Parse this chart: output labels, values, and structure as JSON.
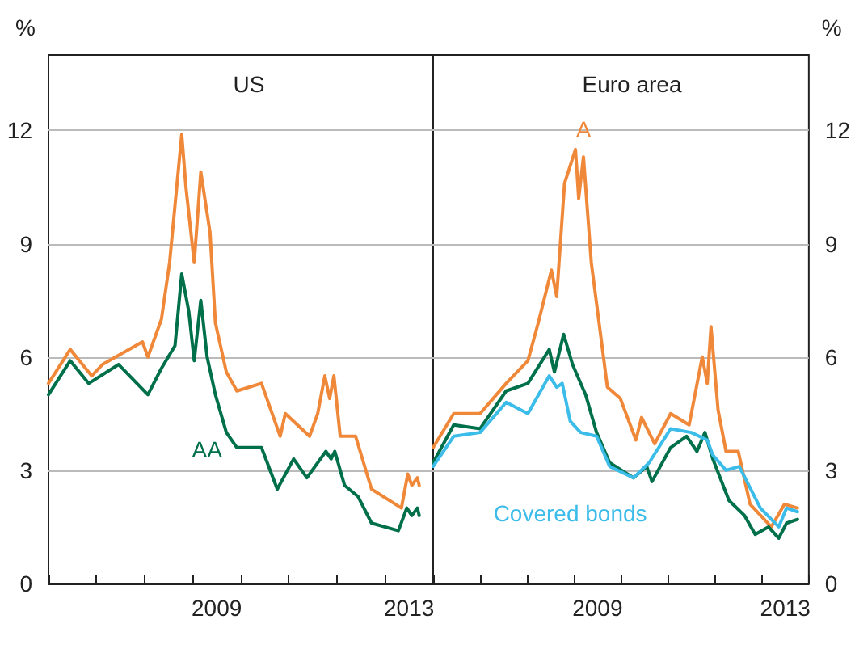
{
  "chart_data": [
    {
      "type": "line",
      "title": "US",
      "ylabel": "%",
      "marker": "none",
      "grid": "y",
      "xlim": [
        "2006-01-01",
        "2014-01-01"
      ],
      "xticks": [
        {
          "value": "2006-01-01",
          "label": null
        },
        {
          "value": "2007-01-01",
          "label": null
        },
        {
          "value": "2008-01-01",
          "label": null
        },
        {
          "value": "2009-01-01",
          "label": null
        },
        {
          "value": "2010-01-01",
          "label": null
        },
        {
          "value": "2011-01-01",
          "label": null
        },
        {
          "value": "2012-01-01",
          "label": null
        },
        {
          "value": "2013-01-01",
          "label": null
        },
        {
          "value": "2014-01-01",
          "label": null
        },
        {
          "value": "2009-07-02",
          "label": "2009"
        },
        {
          "value": "2013-07-02",
          "label": "2013"
        }
      ],
      "ylim": [
        0,
        14
      ],
      "yticks": [
        0,
        3,
        6,
        9,
        12
      ],
      "series": [
        {
          "color": "#f0883a",
          "x": [
            "2006-01-01",
            "2006-06-15",
            "2006-11-25",
            "2007-02-15",
            "2007-05-26",
            "2007-12-16",
            "2008-01-26",
            "2008-05-08",
            "2008-07-09",
            "2008-10-09",
            "2008-11-10",
            "2009-01-12",
            "2009-03-03",
            "2009-05-12",
            "2009-06-22",
            "2009-09-13",
            "2009-12-02",
            "2010-06-07",
            "2010-10-27",
            "2010-12-05",
            "2011-06-07",
            "2011-08-08",
            "2011-10-01",
            "2011-11-07",
            "2011-12-09",
            "2012-01-26",
            "2012-05-22",
            "2012-09-20",
            "2013-05-05",
            "2013-06-22",
            "2013-07-23",
            "2013-09-03",
            "2013-09-17"
          ],
          "values": [
            5.3,
            6.2,
            5.5,
            5.8,
            6.0,
            6.4,
            6.0,
            7.0,
            8.5,
            11.9,
            10.5,
            8.5,
            10.9,
            9.3,
            6.9,
            5.6,
            5.1,
            5.3,
            3.9,
            4.5,
            3.9,
            4.5,
            5.5,
            4.9,
            5.5,
            3.9,
            3.9,
            2.5,
            2.0,
            2.9,
            2.6,
            2.8,
            2.6
          ]
        },
        {
          "name": "AA",
          "color": "#00704a",
          "x": [
            "2006-01-01",
            "2006-06-15",
            "2006-11-03",
            "2007-06-18",
            "2008-01-26",
            "2008-05-08",
            "2008-08-19",
            "2008-10-09",
            "2008-12-02",
            "2009-01-12",
            "2009-03-03",
            "2009-04-20",
            "2009-06-22",
            "2009-09-13",
            "2009-12-02",
            "2010-06-07",
            "2010-10-05",
            "2011-02-06",
            "2011-05-18",
            "2011-10-09",
            "2011-11-18",
            "2011-12-16",
            "2012-02-28",
            "2012-06-10",
            "2012-09-20",
            "2013-04-12",
            "2013-06-15",
            "2013-07-23",
            "2013-09-03",
            "2013-09-17"
          ],
          "values": [
            5.0,
            5.9,
            5.3,
            5.8,
            5.0,
            5.7,
            6.3,
            8.2,
            7.2,
            5.9,
            7.5,
            6.0,
            5.0,
            4.0,
            3.6,
            3.6,
            2.5,
            3.3,
            2.8,
            3.5,
            3.3,
            3.5,
            2.6,
            2.3,
            1.6,
            1.4,
            2.0,
            1.8,
            2.0,
            1.8
          ]
        }
      ]
    },
    {
      "type": "line",
      "title": "Euro area",
      "ylabel": "%",
      "marker": "none",
      "grid": "y",
      "xlim": [
        "2006-01-01",
        "2014-01-01"
      ],
      "xticks": [
        {
          "value": "2006-01-01",
          "label": null
        },
        {
          "value": "2007-01-01",
          "label": null
        },
        {
          "value": "2008-01-01",
          "label": null
        },
        {
          "value": "2009-01-01",
          "label": null
        },
        {
          "value": "2010-01-01",
          "label": null
        },
        {
          "value": "2011-01-01",
          "label": null
        },
        {
          "value": "2012-01-01",
          "label": null
        },
        {
          "value": "2013-01-01",
          "label": null
        },
        {
          "value": "2014-01-01",
          "label": null
        },
        {
          "value": "2009-07-02",
          "label": "2009"
        },
        {
          "value": "2013-07-02",
          "label": "2013"
        }
      ],
      "ylim": [
        0,
        14
      ],
      "yticks": [
        0,
        3,
        6,
        9,
        12
      ],
      "series": [
        {
          "name": "A",
          "color": "#f0883a",
          "x": [
            "2006-01-01",
            "2006-06-10",
            "2007-01-01",
            "2007-07-23",
            "2008-01-08",
            "2008-03-28",
            "2008-07-09",
            "2008-08-19",
            "2008-10-19",
            "2009-01-12",
            "2009-02-06",
            "2009-03-15",
            "2009-05-15",
            "2009-09-17",
            "2009-12-27",
            "2010-04-27",
            "2010-06-10",
            "2010-09-20",
            "2011-01-22",
            "2011-06-15",
            "2011-09-25",
            "2011-11-03",
            "2011-12-02",
            "2012-01-26",
            "2012-03-28",
            "2012-07-01",
            "2012-10-01",
            "2013-03-15",
            "2013-06-25",
            "2013-10-05"
          ],
          "values": [
            3.6,
            4.5,
            4.5,
            5.3,
            5.9,
            6.9,
            8.3,
            7.6,
            10.6,
            11.5,
            10.2,
            11.3,
            8.5,
            5.2,
            4.9,
            3.8,
            4.4,
            3.7,
            4.5,
            4.2,
            6.0,
            5.3,
            6.8,
            4.6,
            3.5,
            3.5,
            2.1,
            1.5,
            2.1,
            2.0
          ]
        },
        {
          "color": "#00704a",
          "x": [
            "2006-01-01",
            "2006-06-10",
            "2007-01-01",
            "2007-07-23",
            "2008-01-08",
            "2008-06-22",
            "2008-08-01",
            "2008-10-12",
            "2008-12-20",
            "2009-04-01",
            "2009-06-25",
            "2009-10-05",
            "2010-04-08",
            "2010-07-20",
            "2010-08-30",
            "2011-01-22",
            "2011-05-26",
            "2011-08-15",
            "2011-10-16",
            "2011-12-16",
            "2012-04-20",
            "2012-08-19",
            "2012-11-10",
            "2013-02-21",
            "2013-05-12",
            "2013-07-12",
            "2013-10-05"
          ],
          "values": [
            3.2,
            4.2,
            4.1,
            5.1,
            5.3,
            6.2,
            5.6,
            6.6,
            5.8,
            5.0,
            4.0,
            3.2,
            2.8,
            3.1,
            2.7,
            3.6,
            3.9,
            3.5,
            4.0,
            3.3,
            2.2,
            1.8,
            1.3,
            1.5,
            1.2,
            1.6,
            1.7
          ]
        },
        {
          "name": "Covered bonds",
          "color": "#3bbce9",
          "x": [
            "2006-01-01",
            "2006-06-10",
            "2007-01-01",
            "2007-07-23",
            "2008-01-08",
            "2008-06-22",
            "2008-08-19",
            "2008-10-01",
            "2008-12-02",
            "2009-02-21",
            "2009-06-25",
            "2009-10-05",
            "2010-04-08",
            "2010-08-08",
            "2011-01-22",
            "2011-07-01",
            "2011-11-03",
            "2011-12-16",
            "2012-03-28",
            "2012-07-09",
            "2012-12-20",
            "2013-05-12",
            "2013-07-12",
            "2013-10-05"
          ],
          "values": [
            3.1,
            3.9,
            4.0,
            4.8,
            4.5,
            5.5,
            5.2,
            5.3,
            4.3,
            4.0,
            3.9,
            3.1,
            2.8,
            3.2,
            4.1,
            4.0,
            3.8,
            3.4,
            3.0,
            3.1,
            2.0,
            1.5,
            2.0,
            1.9
          ]
        }
      ]
    }
  ]
}
